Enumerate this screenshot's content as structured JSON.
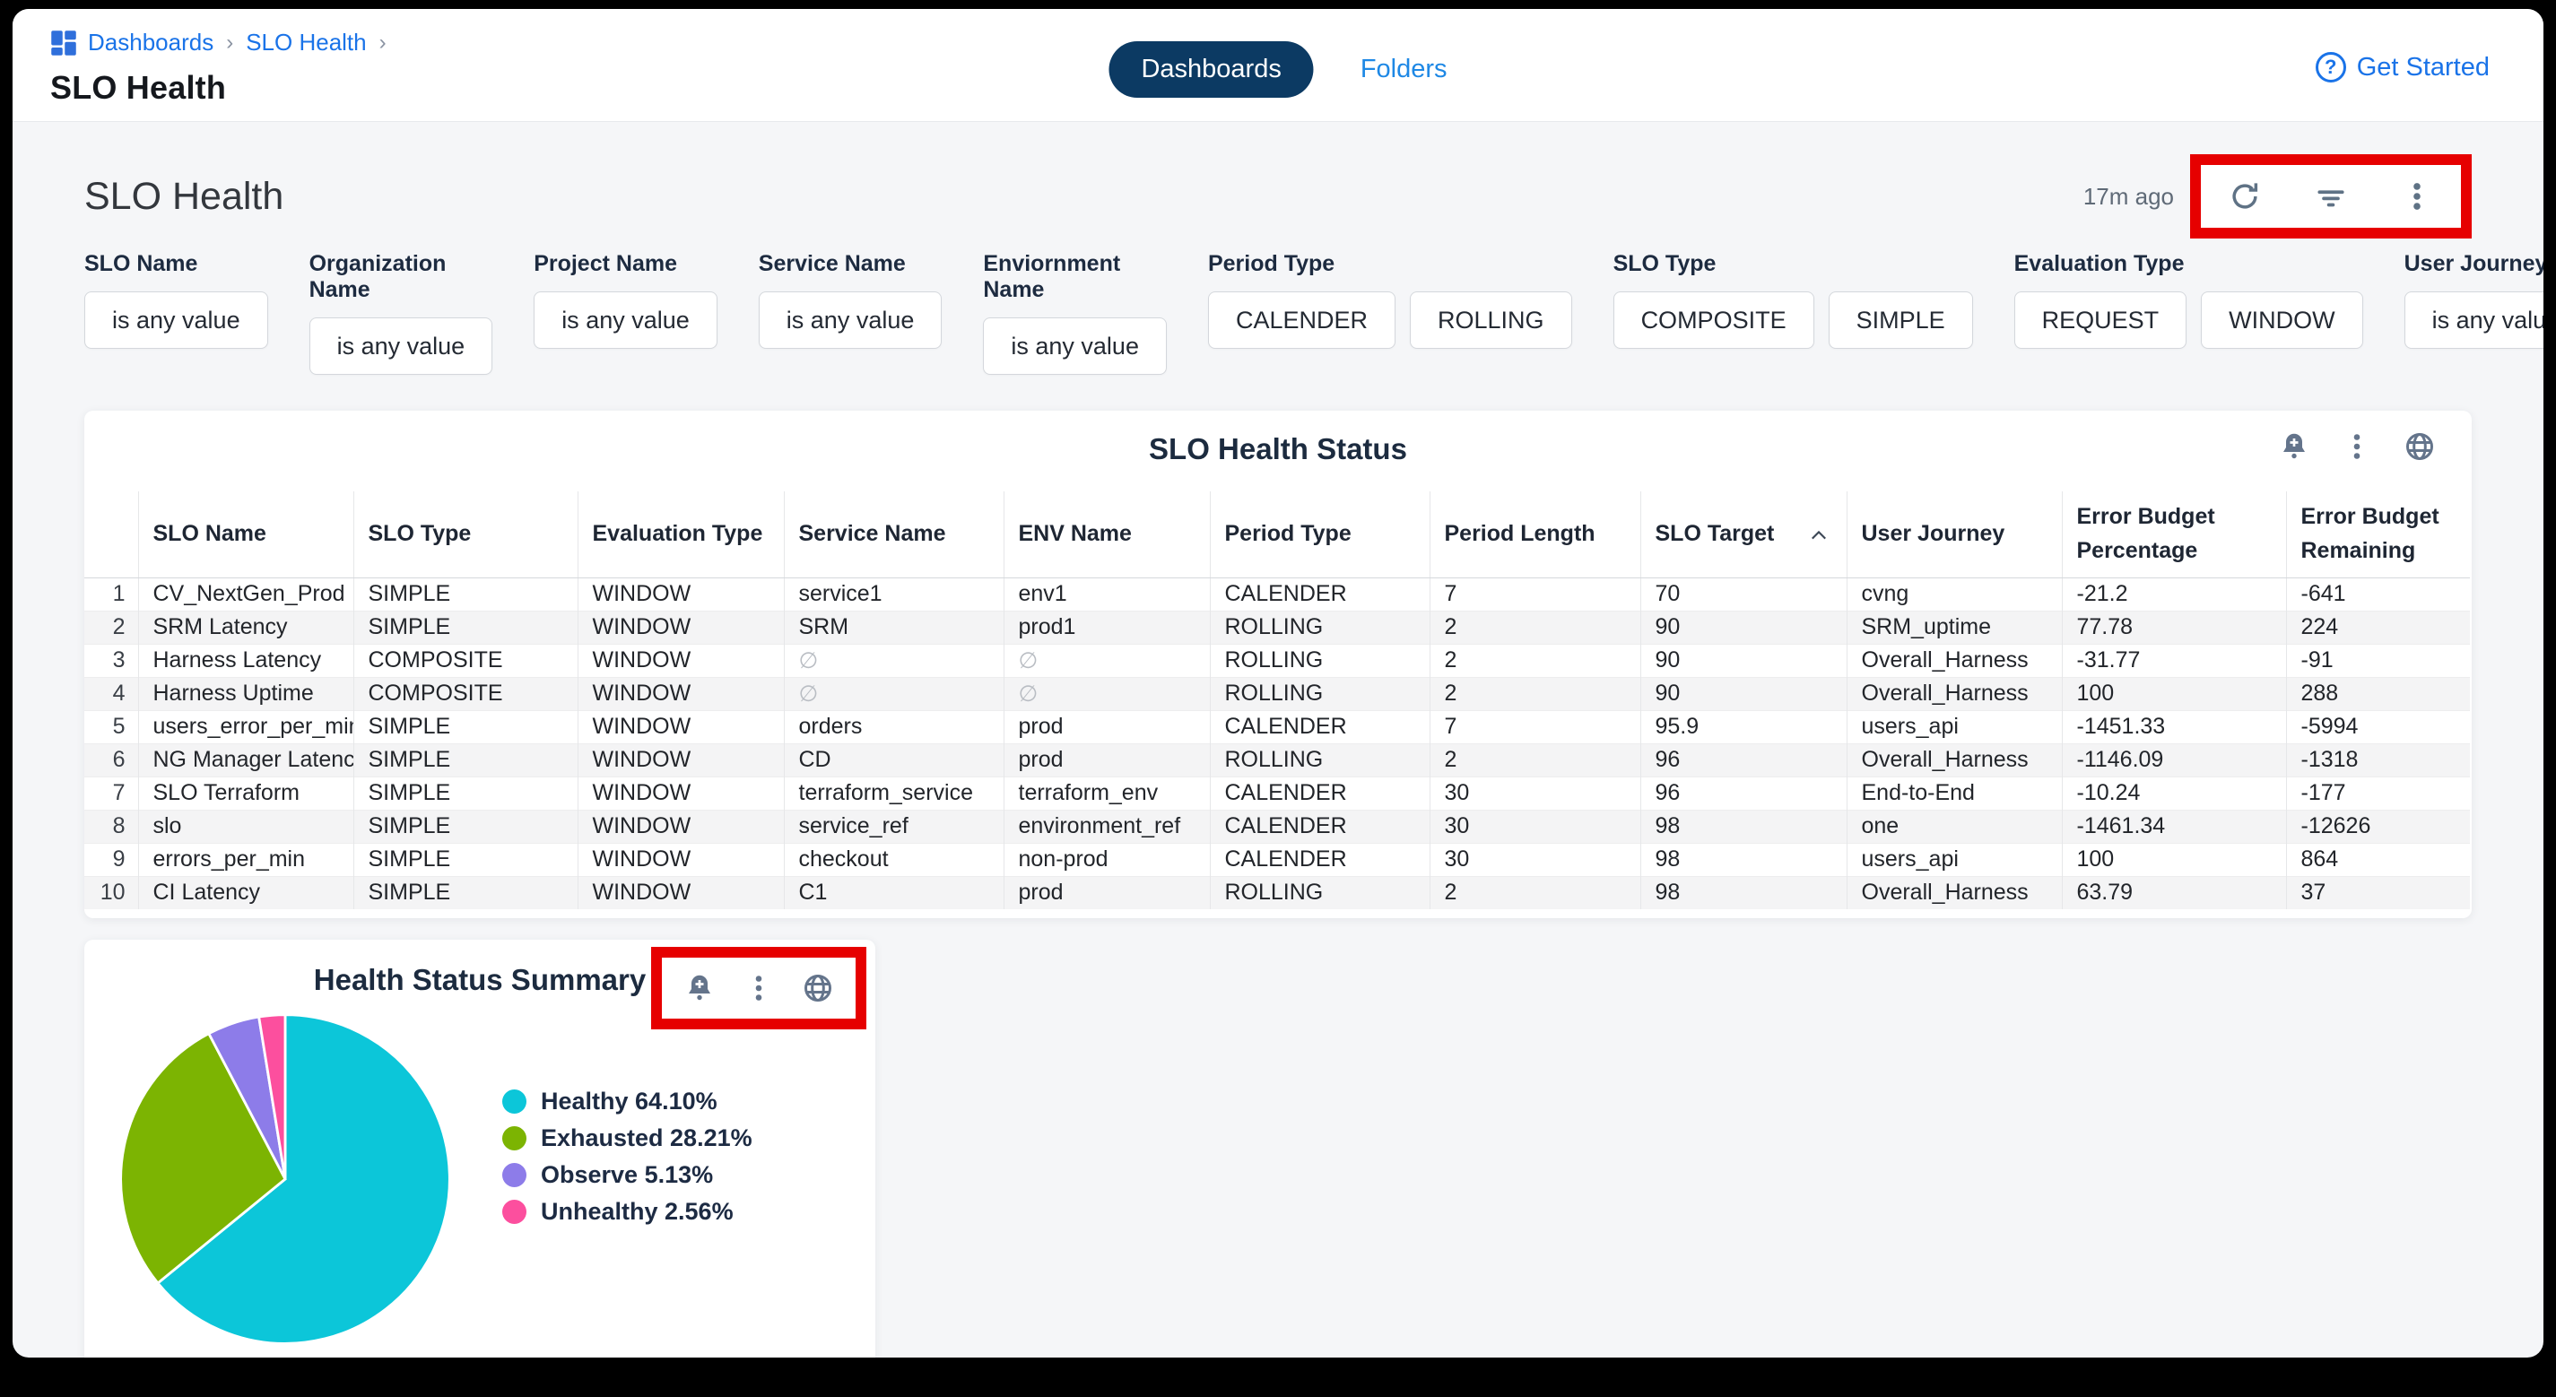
{
  "colors": {
    "link_blue": "#1a73e8",
    "folders_blue": "#1e88e5",
    "tab_pill_navy": "#0c3a63",
    "annotation_red": "#e60000",
    "icon_slate": "#5f7285",
    "content_bg": "#f5f6f8",
    "text_navy": "#1d2b40"
  },
  "header": {
    "breadcrumb": {
      "items": [
        "Dashboards",
        "SLO Health"
      ],
      "separator": "›"
    },
    "page_title": "SLO Health",
    "tabs": [
      {
        "label": "Dashboards",
        "active": true
      },
      {
        "label": "Folders",
        "active": false
      }
    ],
    "get_started_label": "Get Started",
    "help_glyph": "?"
  },
  "dashboard": {
    "title": "SLO Health",
    "last_updated": "17m ago",
    "action_icons": [
      "refresh-icon",
      "filter-icon",
      "kebab-menu-icon"
    ]
  },
  "filters": {
    "groups": [
      {
        "label": "SLO Name",
        "controls": [
          "is any value"
        ]
      },
      {
        "label": "Organization Name",
        "controls": [
          "is any value"
        ]
      },
      {
        "label": "Project Name",
        "controls": [
          "is any value"
        ]
      },
      {
        "label": "Service Name",
        "controls": [
          "is any value"
        ]
      },
      {
        "label": "Enviornment Name",
        "controls": [
          "is any value"
        ]
      },
      {
        "label": "Period Type",
        "controls": [
          "CALENDER",
          "ROLLING"
        ]
      },
      {
        "label": "SLO Type",
        "controls": [
          "COMPOSITE",
          "SIMPLE"
        ]
      },
      {
        "label": "Evaluation Type",
        "controls": [
          "REQUEST",
          "WINDOW"
        ]
      },
      {
        "label": "User Journey",
        "controls": [
          "is any value"
        ]
      }
    ]
  },
  "table": {
    "title": "SLO Health Status",
    "tile_icons": [
      "bell-plus-icon",
      "kebab-menu-icon",
      "globe-icon"
    ],
    "columns": [
      "SLO Name",
      "SLO Type",
      "Evaluation Type",
      "Service Name",
      "ENV Name",
      "Period Type",
      "Period Length",
      "SLO Target",
      "User Journey",
      "Error Budget\nPercentage",
      "Error Budget\nRemaining"
    ],
    "sort": {
      "column": "SLO Target",
      "direction": "asc"
    },
    "null_symbol": "∅",
    "rows": [
      [
        "1",
        "CV_NextGen_Prod",
        "SIMPLE",
        "WINDOW",
        "service1",
        "env1",
        "CALENDER",
        "7",
        "70",
        "cvng",
        "-21.2",
        "-641"
      ],
      [
        "2",
        "SRM Latency",
        "SIMPLE",
        "WINDOW",
        "SRM",
        "prod1",
        "ROLLING",
        "2",
        "90",
        "SRM_uptime",
        "77.78",
        "224"
      ],
      [
        "3",
        "Harness Latency",
        "COMPOSITE",
        "WINDOW",
        "∅",
        "∅",
        "ROLLING",
        "2",
        "90",
        "Overall_Harness",
        "-31.77",
        "-91"
      ],
      [
        "4",
        "Harness Uptime",
        "COMPOSITE",
        "WINDOW",
        "∅",
        "∅",
        "ROLLING",
        "2",
        "90",
        "Overall_Harness",
        "100",
        "288"
      ],
      [
        "5",
        "users_error_per_min",
        "SIMPLE",
        "WINDOW",
        "orders",
        "prod",
        "CALENDER",
        "7",
        "95.9",
        "users_api",
        "-1451.33",
        "-5994"
      ],
      [
        "6",
        "NG Manager Latency",
        "SIMPLE",
        "WINDOW",
        "CD",
        "prod",
        "ROLLING",
        "2",
        "96",
        "Overall_Harness",
        "-1146.09",
        "-1318"
      ],
      [
        "7",
        "SLO Terraform",
        "SIMPLE",
        "WINDOW",
        "terraform_service",
        "terraform_env",
        "CALENDER",
        "30",
        "96",
        "End-to-End",
        "-10.24",
        "-177"
      ],
      [
        "8",
        "slo",
        "SIMPLE",
        "WINDOW",
        "service_ref",
        "environment_ref",
        "CALENDER",
        "30",
        "98",
        "one",
        "-1461.34",
        "-12626"
      ],
      [
        "9",
        "errors_per_min",
        "SIMPLE",
        "WINDOW",
        "checkout",
        "non-prod",
        "CALENDER",
        "30",
        "98",
        "users_api",
        "100",
        "864"
      ],
      [
        "10",
        "CI Latency",
        "SIMPLE",
        "WINDOW",
        "C1",
        "prod",
        "ROLLING",
        "2",
        "98",
        "Overall_Harness",
        "63.79",
        "37"
      ]
    ]
  },
  "chart_data": {
    "type": "pie",
    "title": "Health Status Summary",
    "tile_icons": [
      "bell-plus-icon",
      "kebab-menu-icon",
      "globe-icon"
    ],
    "legend_position": "right",
    "start_angle_deg": 0,
    "direction": "clockwise",
    "slices": [
      {
        "label": "Healthy",
        "value": 64.1,
        "display": "Healthy 64.10%",
        "color": "#0cc6d9"
      },
      {
        "label": "Exhausted",
        "value": 28.21,
        "display": "Exhausted 28.21%",
        "color": "#7cb402"
      },
      {
        "label": "Observe",
        "value": 5.13,
        "display": "Observe 5.13%",
        "color": "#8d7ce9"
      },
      {
        "label": "Unhealthy",
        "value": 2.56,
        "display": "Unhealthy 2.56%",
        "color": "#fc4f9e"
      }
    ]
  }
}
